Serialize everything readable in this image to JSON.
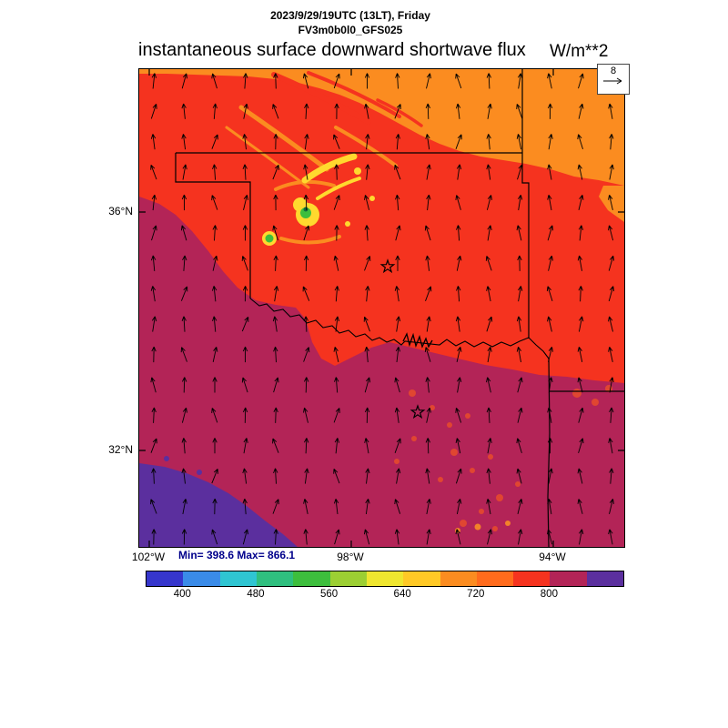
{
  "header": {
    "datetime": "2023/9/29/19UTC (13LT), Friday",
    "model": "FV3m0b0l0_GFS025",
    "title": "instantaneous surface downward shortwave flux",
    "units": "W/m**2"
  },
  "wind_legend": {
    "value": "8"
  },
  "stats": {
    "min_max": "Min= 398.6 Max= 866.1"
  },
  "axes": {
    "lat": [
      {
        "label": "36°N"
      },
      {
        "label": "32°N"
      }
    ],
    "lon": [
      {
        "label": "102°W"
      },
      {
        "label": "98°W"
      },
      {
        "label": "94°W"
      }
    ]
  },
  "colors": {
    "orange": "#FB8C20",
    "red": "#F5331F",
    "maroon": "#B32457",
    "purple": "#5B2F9E",
    "yellow": "#FFD92E",
    "green": "#3DBE3D",
    "dark_green": "#116E3E",
    "speckle_red": "#E04631",
    "speckle_orange": "#F2812A",
    "navy_text": "#00008B",
    "border": "#000000"
  },
  "chart_data": {
    "type": "heatmap",
    "title": "instantaneous surface downward shortwave flux",
    "units": "W/m**2",
    "valid_time": "2023/9/29/19UTC (13LT), Friday",
    "model": "FV3m0b0l0_GFS025",
    "stats": {
      "min": 398.6,
      "max": 866.1
    },
    "wind_reference_ms": 8,
    "extent": {
      "lon": [
        "102°W",
        "94°W"
      ],
      "lat": [
        "32°N",
        "36°N"
      ]
    },
    "colorbar": {
      "levels": [
        360,
        400,
        440,
        480,
        520,
        560,
        600,
        640,
        680,
        720,
        760,
        800,
        840,
        880
      ],
      "tick_labels": [
        "400",
        "480",
        "560",
        "640",
        "720",
        "800"
      ],
      "colors": [
        "#3636CC",
        "#3A8BE8",
        "#2FC5D2",
        "#2FBF7F",
        "#3DBE3D",
        "#9CCF33",
        "#EFE62F",
        "#FFC926",
        "#FB8C20",
        "#FF6B1C",
        "#F5331F",
        "#B32457",
        "#5B2F9E"
      ]
    },
    "regions": [
      {
        "area": "northern band along Kansas border",
        "flux_wm2": "680-760"
      },
      {
        "area": "central and eastern Oklahoma",
        "flux_wm2": "760-800"
      },
      {
        "area": "southwest Oklahoma and north Texas",
        "flux_wm2": "800-840"
      },
      {
        "area": "far southwest corner (bottom-left)",
        "flux_wm2": "840-880"
      },
      {
        "area": "cloud-shaded spots northwest Oklahoma",
        "flux_wm2": "400-660"
      }
    ],
    "wind_field": "surface wind vectors, predominantly southerly (arrows pointing north) across entire domain"
  }
}
